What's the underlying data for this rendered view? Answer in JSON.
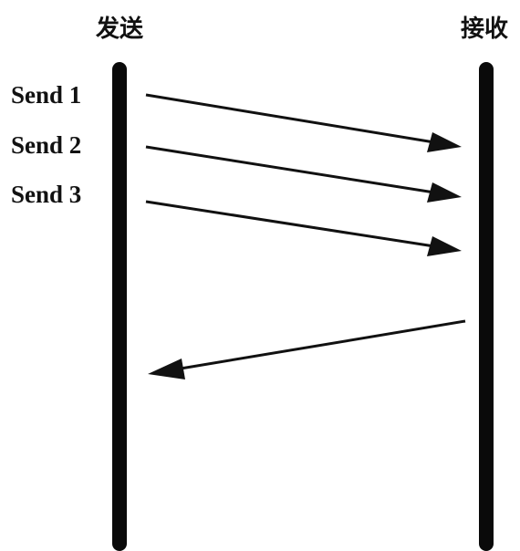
{
  "diagram": {
    "type": "sequence",
    "participants": {
      "sender": "发送",
      "receiver": "接收"
    },
    "messages": [
      {
        "label": "Send 1",
        "direction": "sender-to-receiver"
      },
      {
        "label": "Send 2",
        "direction": "sender-to-receiver"
      },
      {
        "label": "Send 3",
        "direction": "sender-to-receiver"
      },
      {
        "label": "",
        "direction": "receiver-to-sender"
      }
    ]
  }
}
